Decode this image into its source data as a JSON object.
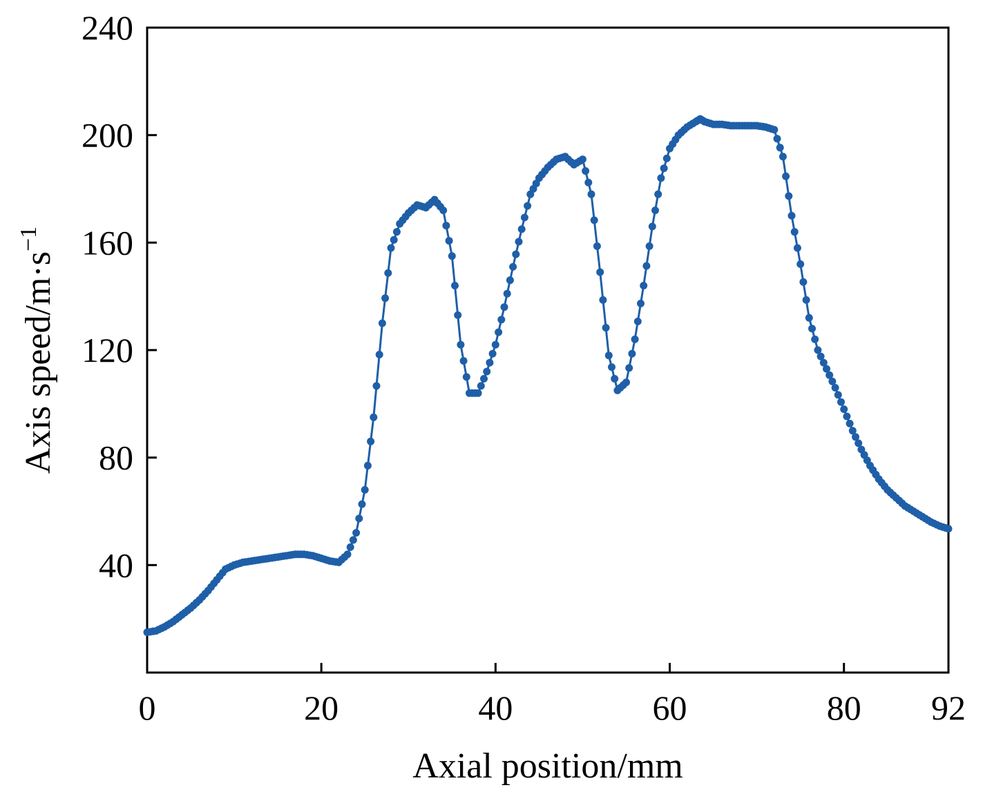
{
  "chart_data": {
    "type": "line",
    "title": "",
    "xlabel": "Axial position/mm",
    "ylabel": "Axis speed/m·s",
    "ylabel_superscript": "−1",
    "xlim": [
      0,
      92
    ],
    "ylim": [
      0,
      240
    ],
    "xticks": [
      0,
      20,
      40,
      60,
      80,
      92
    ],
    "yticks": [
      40,
      80,
      120,
      160,
      200,
      240
    ],
    "grid": false,
    "legend": "none",
    "colors": {
      "series": "#1f5fa8",
      "axis": "#000000"
    },
    "series": [
      {
        "markers": "filled-circle",
        "x": [
          0,
          1,
          2,
          3,
          4,
          5,
          6,
          7,
          8,
          9,
          10,
          11,
          12,
          13,
          14,
          15,
          16,
          17,
          18,
          19,
          20,
          21,
          22,
          23,
          24,
          25,
          26,
          27,
          28,
          29,
          30,
          31,
          32,
          33,
          34,
          35,
          36,
          37,
          38,
          39,
          40,
          41,
          42,
          43,
          44,
          45,
          46,
          47,
          48,
          49,
          50,
          51,
          52,
          53,
          54,
          55,
          56,
          57,
          58,
          59,
          60,
          61,
          62,
          63,
          63.5,
          64,
          65,
          66,
          67,
          68,
          69,
          70,
          71,
          72,
          73,
          74,
          75,
          76,
          77,
          78,
          79,
          80,
          81,
          82,
          83,
          84,
          85,
          86,
          87,
          88,
          89,
          90,
          91,
          92
        ],
        "y": [
          15,
          15.5,
          17,
          19,
          21.5,
          24,
          27,
          30.5,
          34.5,
          38.5,
          40,
          41,
          41.5,
          42,
          42.5,
          43,
          43.5,
          44,
          44,
          43.5,
          42.5,
          41.5,
          41,
          44,
          52,
          68,
          95,
          130,
          158,
          167,
          171,
          174,
          173,
          176,
          172,
          155,
          122,
          104,
          104,
          112,
          122,
          136,
          151,
          165,
          178,
          184,
          188,
          191,
          192,
          189,
          191,
          178,
          149,
          118,
          105,
          108,
          124,
          144,
          166,
          184,
          195,
          200,
          203,
          205,
          206,
          205,
          204,
          204,
          203.5,
          203.5,
          203.5,
          203.5,
          203,
          202,
          192,
          170,
          152,
          132,
          120,
          113,
          106,
          98,
          90,
          83,
          77,
          72,
          68,
          65,
          62,
          60,
          58,
          56,
          54.5,
          53.5
        ]
      }
    ]
  }
}
